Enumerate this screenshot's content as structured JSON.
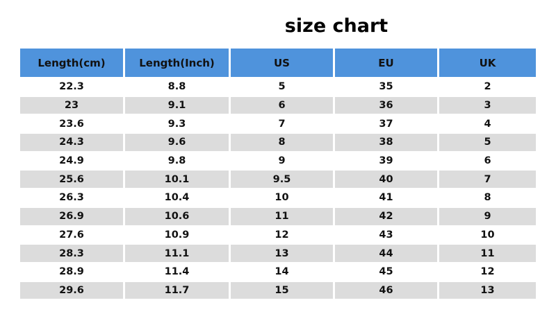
{
  "title": "size chart",
  "colors": {
    "header": "#4f93dc",
    "alt_row": "#dcdcdc"
  },
  "columns": [
    "Length(cm)",
    "Length(Inch)",
    "US",
    "EU",
    "UK"
  ],
  "rows": [
    [
      "22.3",
      "8.8",
      "5",
      "35",
      "2"
    ],
    [
      "23",
      "9.1",
      "6",
      "36",
      "3"
    ],
    [
      "23.6",
      "9.3",
      "7",
      "37",
      "4"
    ],
    [
      "24.3",
      "9.6",
      "8",
      "38",
      "5"
    ],
    [
      "24.9",
      "9.8",
      "9",
      "39",
      "6"
    ],
    [
      "25.6",
      "10.1",
      "9.5",
      "40",
      "7"
    ],
    [
      "26.3",
      "10.4",
      "10",
      "41",
      "8"
    ],
    [
      "26.9",
      "10.6",
      "11",
      "42",
      "9"
    ],
    [
      "27.6",
      "10.9",
      "12",
      "43",
      "10"
    ],
    [
      "28.3",
      "11.1",
      "13",
      "44",
      "11"
    ],
    [
      "28.9",
      "11.4",
      "14",
      "45",
      "12"
    ],
    [
      "29.6",
      "11.7",
      "15",
      "46",
      "13"
    ]
  ]
}
